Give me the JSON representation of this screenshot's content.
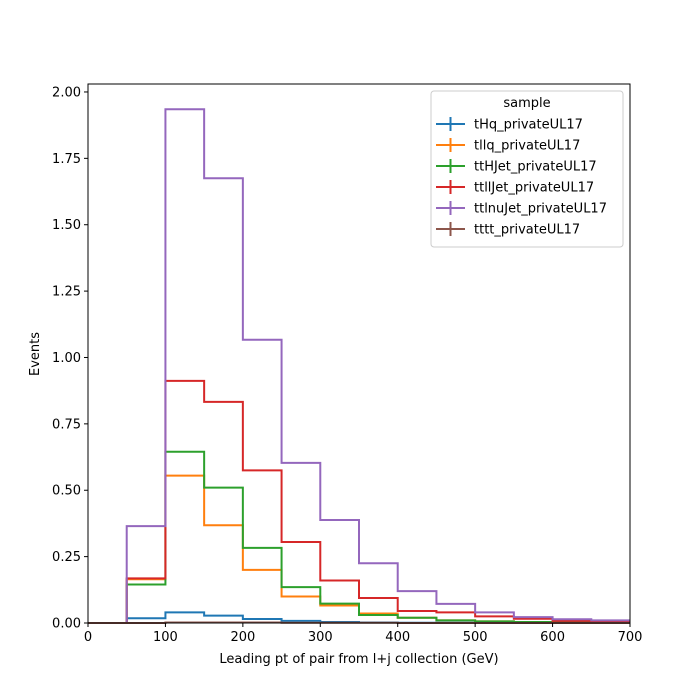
{
  "chart_data": {
    "type": "step-histogram",
    "xlabel": "Leading pt of pair from l+j collection (GeV)",
    "ylabel": "Events",
    "xlim": [
      0,
      700
    ],
    "ylim": [
      0,
      2.03
    ],
    "xticks": [
      0,
      100,
      200,
      300,
      400,
      500,
      600,
      700
    ],
    "yticks": [
      0.0,
      0.25,
      0.5,
      0.75,
      1.0,
      1.25,
      1.5,
      1.75,
      2.0
    ],
    "xtick_labels": [
      "0",
      "100",
      "200",
      "300",
      "400",
      "500",
      "600",
      "700"
    ],
    "ytick_labels": [
      "0.00",
      "0.25",
      "0.50",
      "0.75",
      "1.00",
      "1.25",
      "1.50",
      "1.75",
      "2.00"
    ],
    "bin_edges": [
      0,
      50,
      100,
      150,
      200,
      250,
      300,
      350,
      400,
      450,
      500,
      550,
      600,
      650,
      700
    ],
    "legend": {
      "title": "sample",
      "position": "top-right"
    },
    "grid": false,
    "series": [
      {
        "name": "tHq_privateUL17",
        "color": "#1f77b4",
        "values": [
          0.0,
          0.018,
          0.04,
          0.028,
          0.015,
          0.008,
          0.004,
          0.002,
          0.001,
          0.001,
          0.0,
          0.0,
          0.0,
          0.0
        ]
      },
      {
        "name": "tllq_privateUL17",
        "color": "#ff7f0e",
        "values": [
          0.0,
          0.165,
          0.555,
          0.368,
          0.2,
          0.1,
          0.066,
          0.036,
          0.02,
          0.01,
          0.006,
          0.004,
          0.002,
          0.001
        ]
      },
      {
        "name": "ttHJet_privateUL17",
        "color": "#2ca02c",
        "values": [
          0.0,
          0.145,
          0.645,
          0.51,
          0.283,
          0.135,
          0.073,
          0.03,
          0.02,
          0.01,
          0.006,
          0.004,
          0.002,
          0.001
        ]
      },
      {
        "name": "ttllJet_privateUL17",
        "color": "#d62728",
        "values": [
          0.0,
          0.168,
          0.912,
          0.833,
          0.575,
          0.305,
          0.16,
          0.094,
          0.045,
          0.04,
          0.025,
          0.016,
          0.008,
          0.005
        ]
      },
      {
        "name": "ttlnuJet_privateUL17",
        "color": "#9467bd",
        "values": [
          0.0,
          0.365,
          1.935,
          1.675,
          1.067,
          0.603,
          0.388,
          0.225,
          0.12,
          0.072,
          0.04,
          0.022,
          0.014,
          0.01
        ]
      },
      {
        "name": "tttt_privateUL17",
        "color": "#8c564b",
        "values": [
          0.0,
          0.0,
          0.002,
          0.002,
          0.002,
          0.001,
          0.001,
          0.001,
          0.0,
          0.0,
          0.0,
          0.0,
          0.0,
          0.0
        ]
      }
    ]
  }
}
